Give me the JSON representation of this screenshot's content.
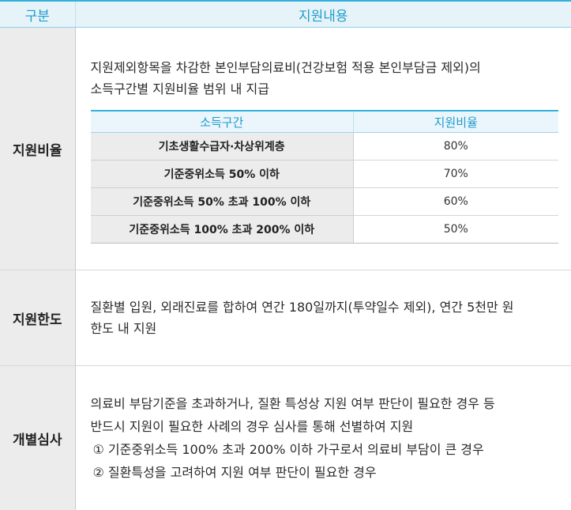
{
  "header": {
    "col1": "구분",
    "col2": "지원내용"
  },
  "support_rate": {
    "label": "지원비율",
    "description": [
      "지원제외항목을 차감한 본인부담의료비(건강보험 적용 본인부담금 제외)의",
      "소득구간별 지원비율 범위 내 지급"
    ],
    "table": {
      "headers": [
        "소득구간",
        "지원비율"
      ],
      "rows": [
        {
          "bracket": "기초생활수급자·차상위계층",
          "rate": "80%"
        },
        {
          "bracket": "기준중위소득 50% 이하",
          "rate": "70%"
        },
        {
          "bracket": "기준중위소득 50% 초과 100% 이하",
          "rate": "60%"
        },
        {
          "bracket": "기준중위소득 100% 초과 200% 이하",
          "rate": "50%"
        }
      ]
    }
  },
  "support_limit": {
    "label": "지원한도",
    "description": [
      "질환별 입원, 외래진료를 합하여 연간 180일까지(투약일수 제외), 연간 5천만 원",
      "한도 내 지원"
    ]
  },
  "individual_review": {
    "label": "개별심사",
    "description": [
      "의료비 부담기준을 초과하거나, 질환 특성상 지원 여부 판단이 필요한 경우 등",
      "반드시 지원이 필요한 사례의 경우 심사를 통해 선별하여 지원"
    ],
    "items": [
      "① 기준중위소득 100% 초과 200% 이하 가구로서 의료비 부담이 큰 경우",
      "② 질환특성을 고려하여 지원 여부 판단이 필요한 경우"
    ]
  }
}
